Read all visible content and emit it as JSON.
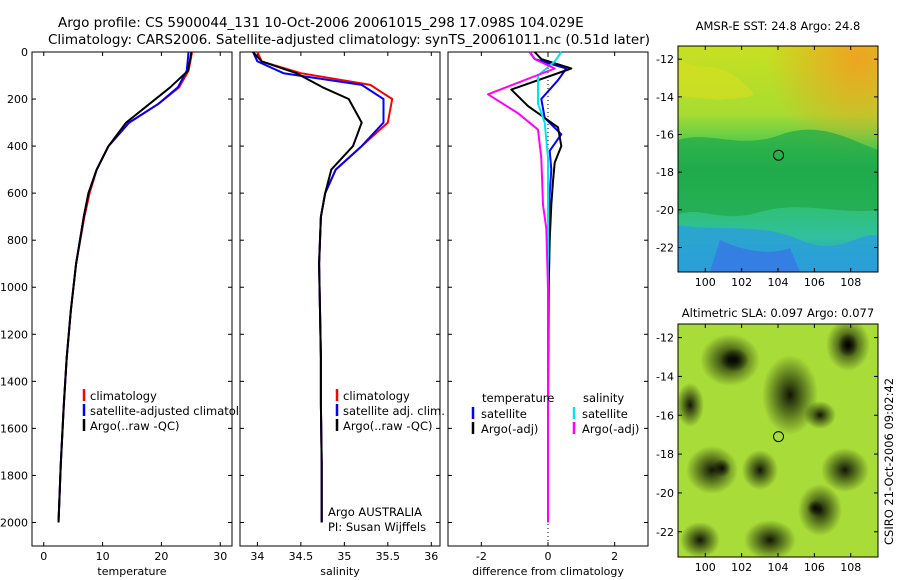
{
  "figure": {
    "title_line1": "Argo profile: CS 5900044_131 10-Oct-2006 20061015_298 17.098S 104.029E",
    "title_line2": "Climatology: CARS2006. Satellite-adjusted climatology: synTS_20061011.nc (0.51d later)",
    "side_label": "CSIRO 21-Oct-2006 09:02:42",
    "credit_line1": "Argo AUSTRALIA",
    "credit_line2": "PI: Susan Wijffels"
  },
  "colors": {
    "climatology": "#ff0000",
    "satellite": "#0000ff",
    "argo": "#000000",
    "temp_satellite_diff": "#0000ff",
    "sal_satellite_diff": "#00e5ee",
    "sal_argo_diff": "#ff00ff",
    "zero_line": "#000000"
  },
  "chart_data": [
    {
      "type": "line",
      "xlabel": "temperature",
      "ylim": [
        2100,
        0
      ],
      "xlim": [
        -2,
        32
      ],
      "xticks": [
        0,
        10,
        20,
        30
      ],
      "yticks": [
        0,
        200,
        400,
        600,
        800,
        1000,
        1200,
        1400,
        1600,
        1800,
        2000
      ],
      "legend": [
        "climatology",
        "satellite-adjusted climatology",
        "Argo(..raw -QC)"
      ],
      "series": [
        {
          "name": "climatology",
          "x": [
            25.2,
            25.0,
            24.6,
            23.0,
            19.5,
            14.5,
            11.0,
            9.0,
            7.8,
            6.9,
            5.5,
            4.6,
            3.9,
            3.4,
            2.9,
            2.5
          ],
          "y": [
            0,
            30,
            80,
            150,
            220,
            300,
            400,
            500,
            600,
            700,
            900,
            1100,
            1300,
            1500,
            1750,
            2000
          ]
        },
        {
          "name": "satellite-adjusted climatology",
          "x": [
            24.6,
            24.5,
            24.3,
            22.8,
            19.5,
            14.5,
            11.0,
            9.0,
            7.6,
            6.8,
            5.5,
            4.6,
            3.9,
            3.4,
            2.9,
            2.5
          ],
          "y": [
            0,
            30,
            80,
            150,
            220,
            300,
            400,
            500,
            600,
            700,
            900,
            1100,
            1300,
            1500,
            1750,
            2000
          ]
        },
        {
          "name": "Argo(..raw -QC)",
          "x": [
            25.1,
            24.9,
            24.5,
            21.5,
            18.0,
            14.0,
            11.0,
            9.0,
            7.6,
            6.8,
            5.5,
            4.6,
            3.9,
            3.4,
            2.9,
            2.5
          ],
          "y": [
            0,
            30,
            80,
            150,
            220,
            300,
            400,
            500,
            600,
            700,
            900,
            1100,
            1300,
            1500,
            1750,
            2000
          ]
        }
      ]
    },
    {
      "type": "line",
      "xlabel": "salinity",
      "ylim": [
        2100,
        0
      ],
      "xlim": [
        33.8,
        36.1
      ],
      "xticks": [
        34,
        34.5,
        35,
        35.5,
        36
      ],
      "legend": [
        "climatology",
        "satellite adj. clim.",
        "Argo(..raw -QC)"
      ],
      "series": [
        {
          "name": "climatology",
          "x": [
            34.0,
            34.05,
            34.5,
            35.3,
            35.55,
            35.5,
            35.2,
            34.9,
            34.78,
            34.73,
            34.71,
            34.72,
            34.73,
            34.73,
            34.74,
            34.74
          ],
          "y": [
            0,
            40,
            90,
            140,
            200,
            300,
            400,
            500,
            600,
            700,
            900,
            1100,
            1300,
            1500,
            1750,
            2000
          ]
        },
        {
          "name": "satellite adj. clim.",
          "x": [
            33.95,
            34.0,
            34.3,
            35.2,
            35.45,
            35.45,
            35.2,
            34.9,
            34.78,
            34.73,
            34.71,
            34.72,
            34.73,
            34.73,
            34.74,
            34.74
          ],
          "y": [
            0,
            40,
            90,
            140,
            200,
            300,
            400,
            500,
            600,
            700,
            900,
            1100,
            1300,
            1500,
            1750,
            2000
          ]
        },
        {
          "name": "Argo(..raw -QC)",
          "x": [
            33.95,
            34.05,
            34.45,
            34.75,
            35.05,
            35.2,
            35.1,
            34.85,
            34.78,
            34.73,
            34.71,
            34.72,
            34.73,
            34.73,
            34.74,
            34.74
          ],
          "y": [
            0,
            40,
            90,
            150,
            200,
            300,
            400,
            500,
            600,
            700,
            900,
            1100,
            1300,
            1500,
            1750,
            2000
          ]
        }
      ]
    },
    {
      "type": "line",
      "xlabel": "difference from climatology",
      "ylim": [
        2100,
        0
      ],
      "xlim": [
        -3,
        3
      ],
      "xticks": [
        -2,
        0,
        2
      ],
      "legend_temperature_heading": "temperature",
      "legend_salinity_heading": "salinity",
      "legend": [
        "satellite",
        "Argo(-adj)",
        "satellite",
        "Argo(-adj)"
      ],
      "series": [
        {
          "name": "temperature satellite",
          "x": [
            -0.55,
            -0.4,
            0.55,
            0.3,
            -0.2,
            -0.1,
            0.4,
            0.05,
            0.1,
            0.05,
            0.02,
            0.01,
            0.0,
            0.0
          ],
          "y": [
            0,
            30,
            70,
            120,
            200,
            280,
            350,
            420,
            500,
            600,
            800,
            1000,
            1500,
            2000
          ]
        },
        {
          "name": "temperature Argo(-adj)",
          "x": [
            -0.4,
            -0.2,
            0.7,
            -1.1,
            -0.6,
            0.3,
            0.4,
            0.2,
            0.15,
            0.1,
            0.05,
            0.02,
            0.0,
            0.0
          ],
          "y": [
            0,
            30,
            70,
            160,
            230,
            320,
            400,
            470,
            550,
            650,
            800,
            1000,
            1500,
            2000
          ]
        },
        {
          "name": "salinity satellite",
          "x": [
            0.4,
            0.2,
            -0.3,
            -0.3,
            -0.1,
            0.0,
            0.0,
            0.0,
            0.0,
            0.0
          ],
          "y": [
            0,
            40,
            100,
            220,
            300,
            450,
            600,
            900,
            1500,
            2000
          ]
        },
        {
          "name": "salinity Argo(-adj)",
          "x": [
            -0.55,
            -0.4,
            0.2,
            -1.8,
            -0.9,
            -0.3,
            -0.2,
            -0.15,
            -0.05,
            0.0,
            0.0,
            0.0
          ],
          "y": [
            0,
            30,
            70,
            180,
            260,
            330,
            450,
            650,
            750,
            1000,
            1500,
            2000
          ]
        }
      ]
    },
    {
      "type": "heatmap",
      "title": "AMSR-E SST: 24.8 Argo: 24.8",
      "xlim": [
        98.5,
        109.5
      ],
      "ylim": [
        -23.3,
        -11.3
      ],
      "xticks": [
        100,
        102,
        104,
        106,
        108
      ],
      "yticks": [
        -12,
        -14,
        -16,
        -18,
        -20,
        -22
      ],
      "marker": {
        "lon": 104.029,
        "lat": -17.098
      }
    },
    {
      "type": "heatmap",
      "title": "Altimetric SLA: 0.097 Argo: 0.077",
      "xlim": [
        98.5,
        109.5
      ],
      "ylim": [
        -23.3,
        -11.3
      ],
      "xticks": [
        100,
        102,
        104,
        106,
        108
      ],
      "yticks": [
        -12,
        -14,
        -16,
        -18,
        -20,
        -22
      ],
      "marker": {
        "lon": 104.029,
        "lat": -17.098
      }
    }
  ]
}
